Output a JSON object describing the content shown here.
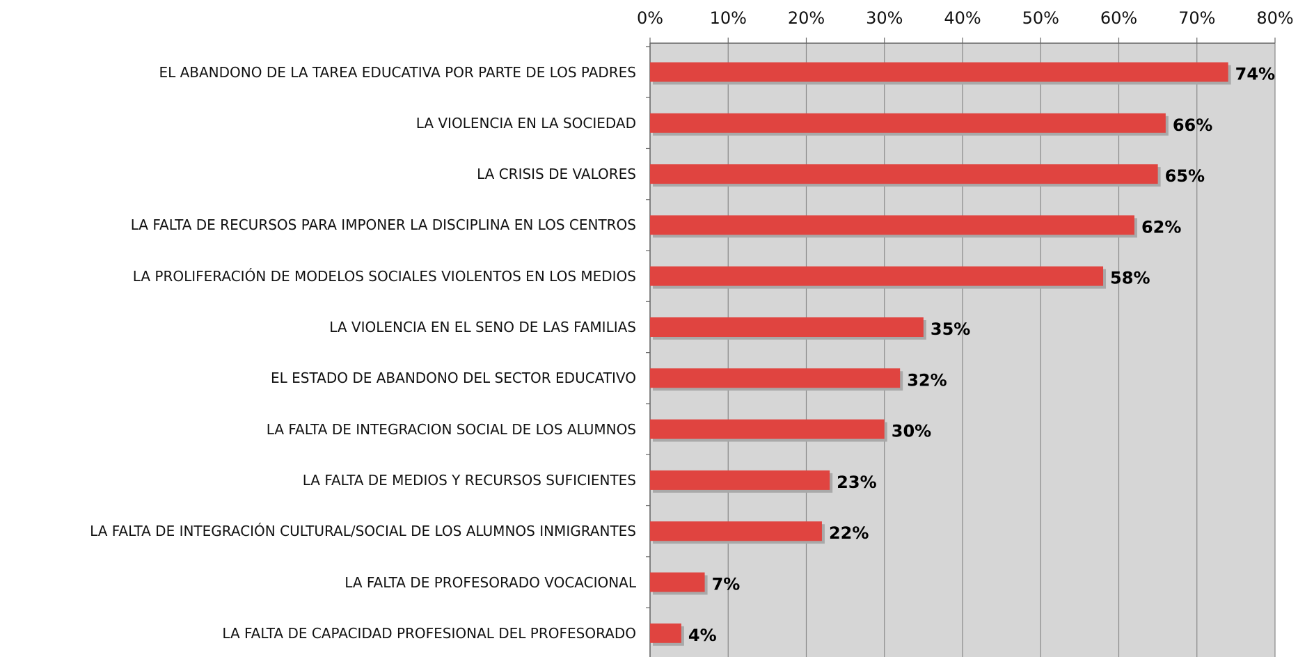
{
  "chart_data": {
    "type": "bar",
    "orientation": "horizontal",
    "categories": [
      "EL ABANDONO DE LA TAREA EDUCATIVA POR PARTE DE LOS PADRES",
      "LA VIOLENCIA EN LA SOCIEDAD",
      "LA CRISIS DE VALORES",
      "LA FALTA DE RECURSOS PARA IMPONER LA DISCIPLINA EN LOS CENTROS",
      "LA PROLIFERACIÓN DE MODELOS SOCIALES VIOLENTOS EN LOS MEDIOS",
      "LA VIOLENCIA EN EL SENO DE LAS FAMILIAS",
      "EL ESTADO DE ABANDONO DEL SECTOR EDUCATIVO",
      "LA FALTA DE INTEGRACION SOCIAL DE LOS ALUMNOS",
      "LA FALTA DE MEDIOS Y RECURSOS SUFICIENTES",
      "LA FALTA DE INTEGRACIÓN CULTURAL/SOCIAL DE LOS ALUMNOS INMIGRANTES",
      "LA FALTA DE PROFESORADO VOCACIONAL",
      "LA FALTA DE CAPACIDAD PROFESIONAL DEL PROFESORADO"
    ],
    "values": [
      74,
      66,
      65,
      62,
      58,
      35,
      32,
      30,
      23,
      22,
      7,
      4
    ],
    "value_labels": [
      "74%",
      "66%",
      "65%",
      "62%",
      "58%",
      "35%",
      "32%",
      "30%",
      "23%",
      "22%",
      "7%",
      "4%"
    ],
    "color": "#e04440",
    "xlim": [
      0,
      80
    ],
    "xticks": [
      {
        "value": 0,
        "label": "0%"
      },
      {
        "value": 10,
        "label": "10%"
      },
      {
        "value": 20,
        "label": "20%"
      },
      {
        "value": 30,
        "label": "30%"
      },
      {
        "value": 40,
        "label": "40%"
      },
      {
        "value": 50,
        "label": "50%"
      },
      {
        "value": 60,
        "label": "60%"
      },
      {
        "value": 70,
        "label": "70%"
      },
      {
        "value": 80,
        "label": "80%"
      }
    ],
    "grid": true
  }
}
